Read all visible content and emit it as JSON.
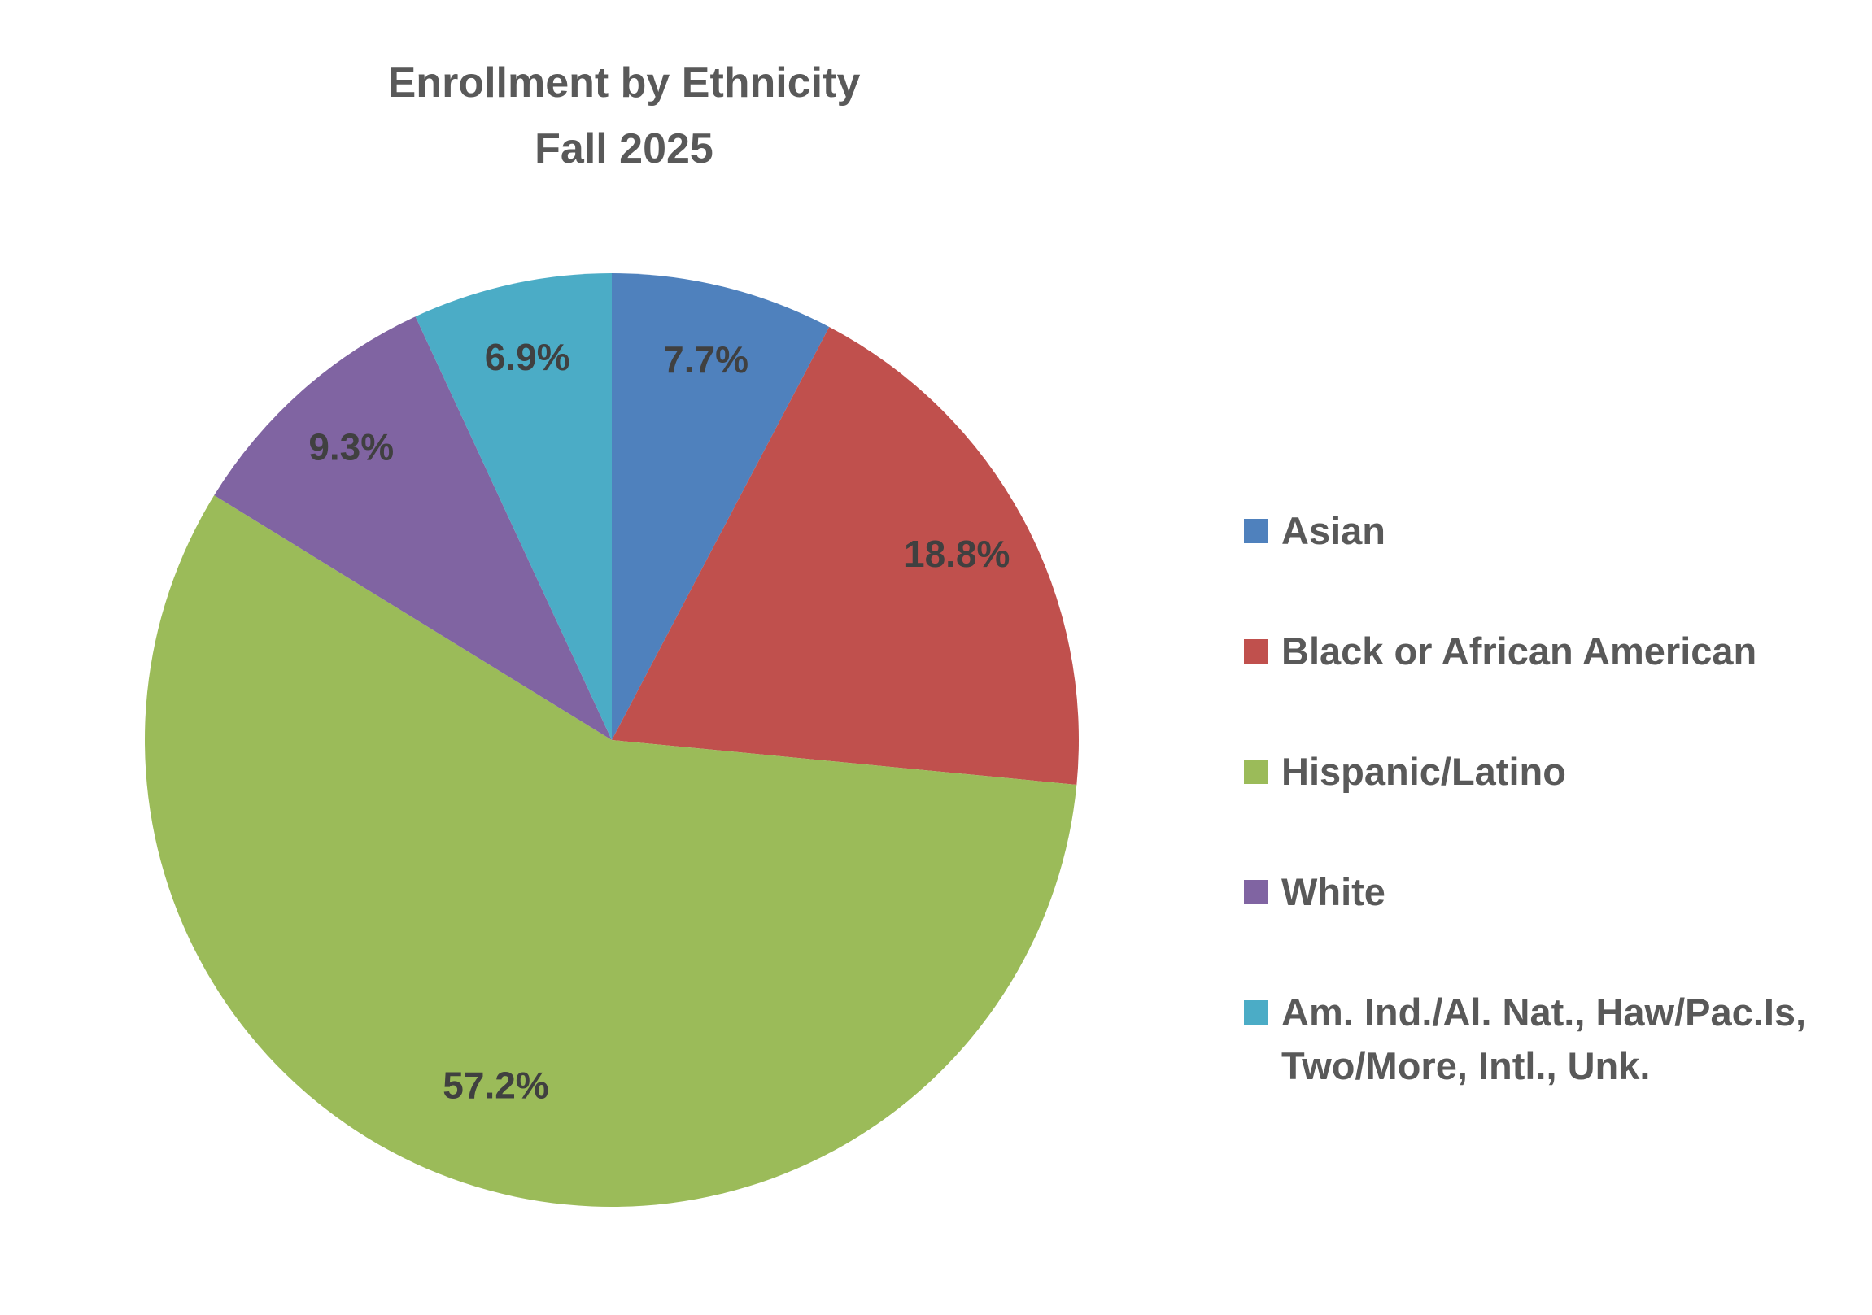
{
  "chart_data": {
    "type": "pie",
    "title": "Enrollment by Ethnicity",
    "subtitle": "Fall 2025",
    "categories": [
      "Asian",
      "Black or African American",
      "Hispanic/Latino",
      "White",
      "Am. Ind./Al. Nat., Haw/Pac.Is, Two/More, Intl., Unk."
    ],
    "values": [
      7.7,
      18.8,
      57.2,
      9.3,
      6.9
    ],
    "data_labels": [
      "7.7%",
      "18.8%",
      "57.2%",
      "9.3%",
      "6.9%"
    ],
    "colors": [
      "#4F81BD",
      "#C0504D",
      "#9BBB59",
      "#8064A2",
      "#4BACC6"
    ],
    "start_angle": "12 o'clock, clockwise",
    "legend_position": "right"
  }
}
